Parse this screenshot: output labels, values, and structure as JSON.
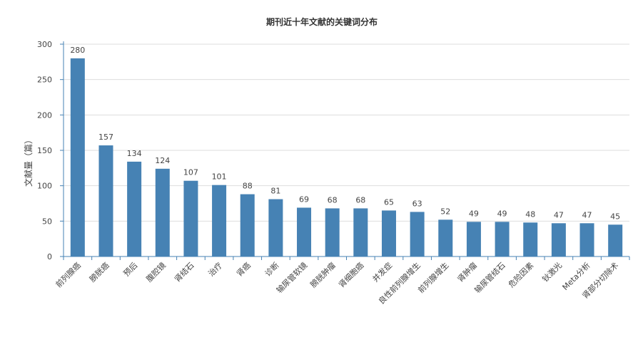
{
  "chart_data": {
    "type": "bar",
    "title": "期刊近十年文献的关键词分布",
    "ylabel": "文献量（篇）",
    "ylim": [
      0,
      300
    ],
    "yticks": [
      0,
      50,
      100,
      150,
      200,
      250,
      300
    ],
    "grid": true,
    "categories": [
      "前列腺癌",
      "膀胱癌",
      "预后",
      "腹腔镜",
      "肾结石",
      "治疗",
      "肾癌",
      "诊断",
      "输尿管软镜",
      "膀胱肿瘤",
      "肾细胞癌",
      "并发症",
      "良性前列腺增生",
      "前列腺增生",
      "肾肿瘤",
      "输尿管结石",
      "危险因素",
      "钬激光",
      "Meta分析",
      "肾部分切除术"
    ],
    "values": [
      280,
      157,
      134,
      124,
      107,
      101,
      88,
      81,
      69,
      68,
      68,
      65,
      63,
      52,
      49,
      49,
      48,
      47,
      47,
      45
    ],
    "colors": {
      "bar": "#4682b4",
      "axis": "#4682b4",
      "grid": "#dddddd"
    }
  }
}
